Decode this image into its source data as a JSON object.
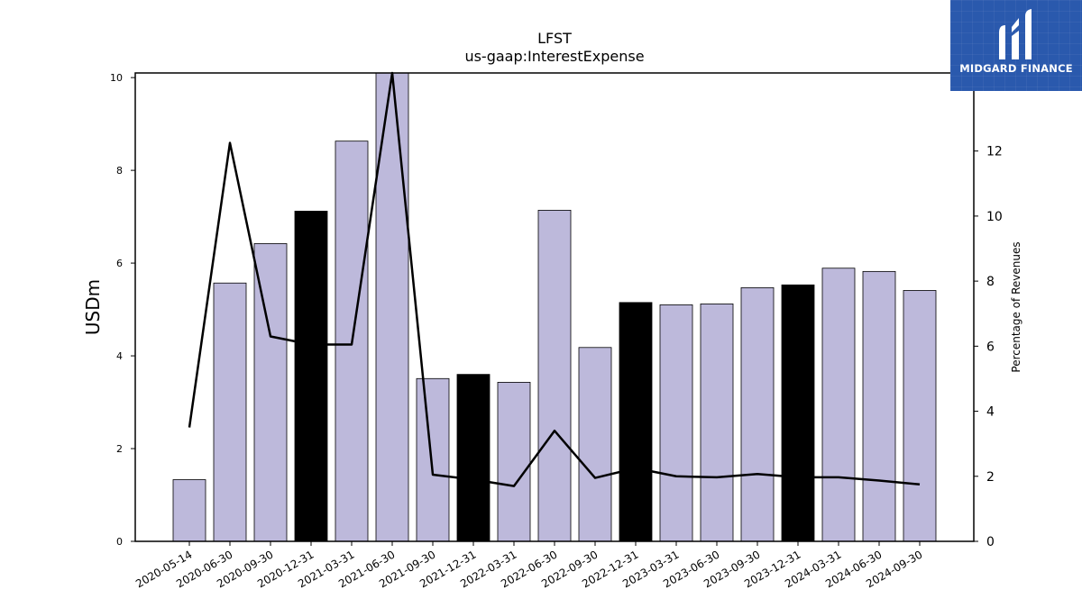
{
  "chart_data": {
    "type": "bar",
    "title": "LFST",
    "subtitle": "us-gaap:InterestExpense",
    "ylabel": "USDm",
    "y2label": "Percentage of Revenues",
    "ylim": [
      0,
      10.1
    ],
    "y2lim": [
      0,
      14.4
    ],
    "yticks": [
      0,
      2,
      4,
      6,
      8,
      10
    ],
    "y2ticks": [
      0,
      2,
      4,
      6,
      8,
      10,
      12
    ],
    "categories": [
      "2020-05-14",
      "2020-06-30",
      "2020-09-30",
      "2020-12-31",
      "2021-03-31",
      "2021-06-30",
      "2021-09-30",
      "2021-12-31",
      "2022-03-31",
      "2022-06-30",
      "2022-09-30",
      "2022-12-31",
      "2023-03-31",
      "2023-06-30",
      "2023-09-30",
      "2023-12-31",
      "2024-03-31",
      "2024-06-30",
      "2024-09-30"
    ],
    "series": [
      {
        "kind": "bar",
        "axis": "left",
        "values": [
          1.33,
          5.57,
          6.42,
          7.12,
          8.63,
          10.1,
          3.51,
          3.6,
          3.43,
          7.14,
          4.18,
          5.15,
          5.1,
          5.12,
          5.47,
          5.53,
          5.89,
          5.82,
          5.41
        ],
        "highlight": [
          false,
          false,
          false,
          true,
          false,
          false,
          false,
          true,
          false,
          false,
          false,
          true,
          false,
          false,
          false,
          true,
          false,
          false,
          false
        ]
      },
      {
        "kind": "line",
        "axis": "right",
        "values": [
          3.5,
          12.25,
          6.3,
          6.05,
          6.05,
          14.4,
          2.05,
          1.9,
          1.7,
          3.4,
          1.95,
          2.25,
          2.0,
          1.97,
          2.07,
          1.97,
          1.97,
          1.87,
          1.75
        ]
      }
    ],
    "colors": {
      "bar": "#bdb9db",
      "bar_highlight": "#000000",
      "line": "#000000"
    }
  },
  "logo": {
    "text": "MIDGARD FINANCE",
    "background": "#2a59ad"
  }
}
